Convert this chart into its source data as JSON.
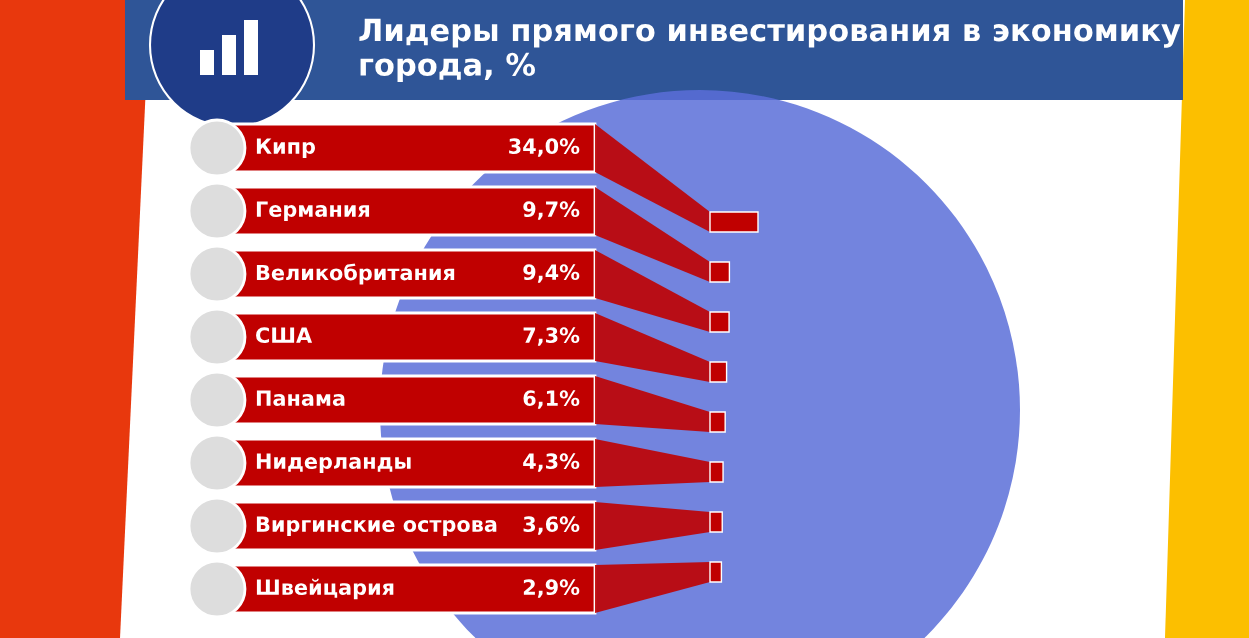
{
  "chart_data": {
    "type": "other",
    "title": "Лидеры прямого инвестирования в экономику города, %",
    "categories": [
      "Кипр",
      "Германия",
      "Великобритания",
      "США",
      "Панама",
      "Нидерланды",
      "Виргинские острова",
      "Швейцария"
    ],
    "values": [
      34.0,
      9.7,
      9.4,
      7.3,
      6.1,
      4.3,
      3.6,
      2.9
    ],
    "value_labels": [
      "34,0%",
      "9,7%",
      "9,4%",
      "7,3%",
      "6,1%",
      "4,3%",
      "3,6%",
      "2,9%"
    ],
    "color": "#c00000"
  }
}
